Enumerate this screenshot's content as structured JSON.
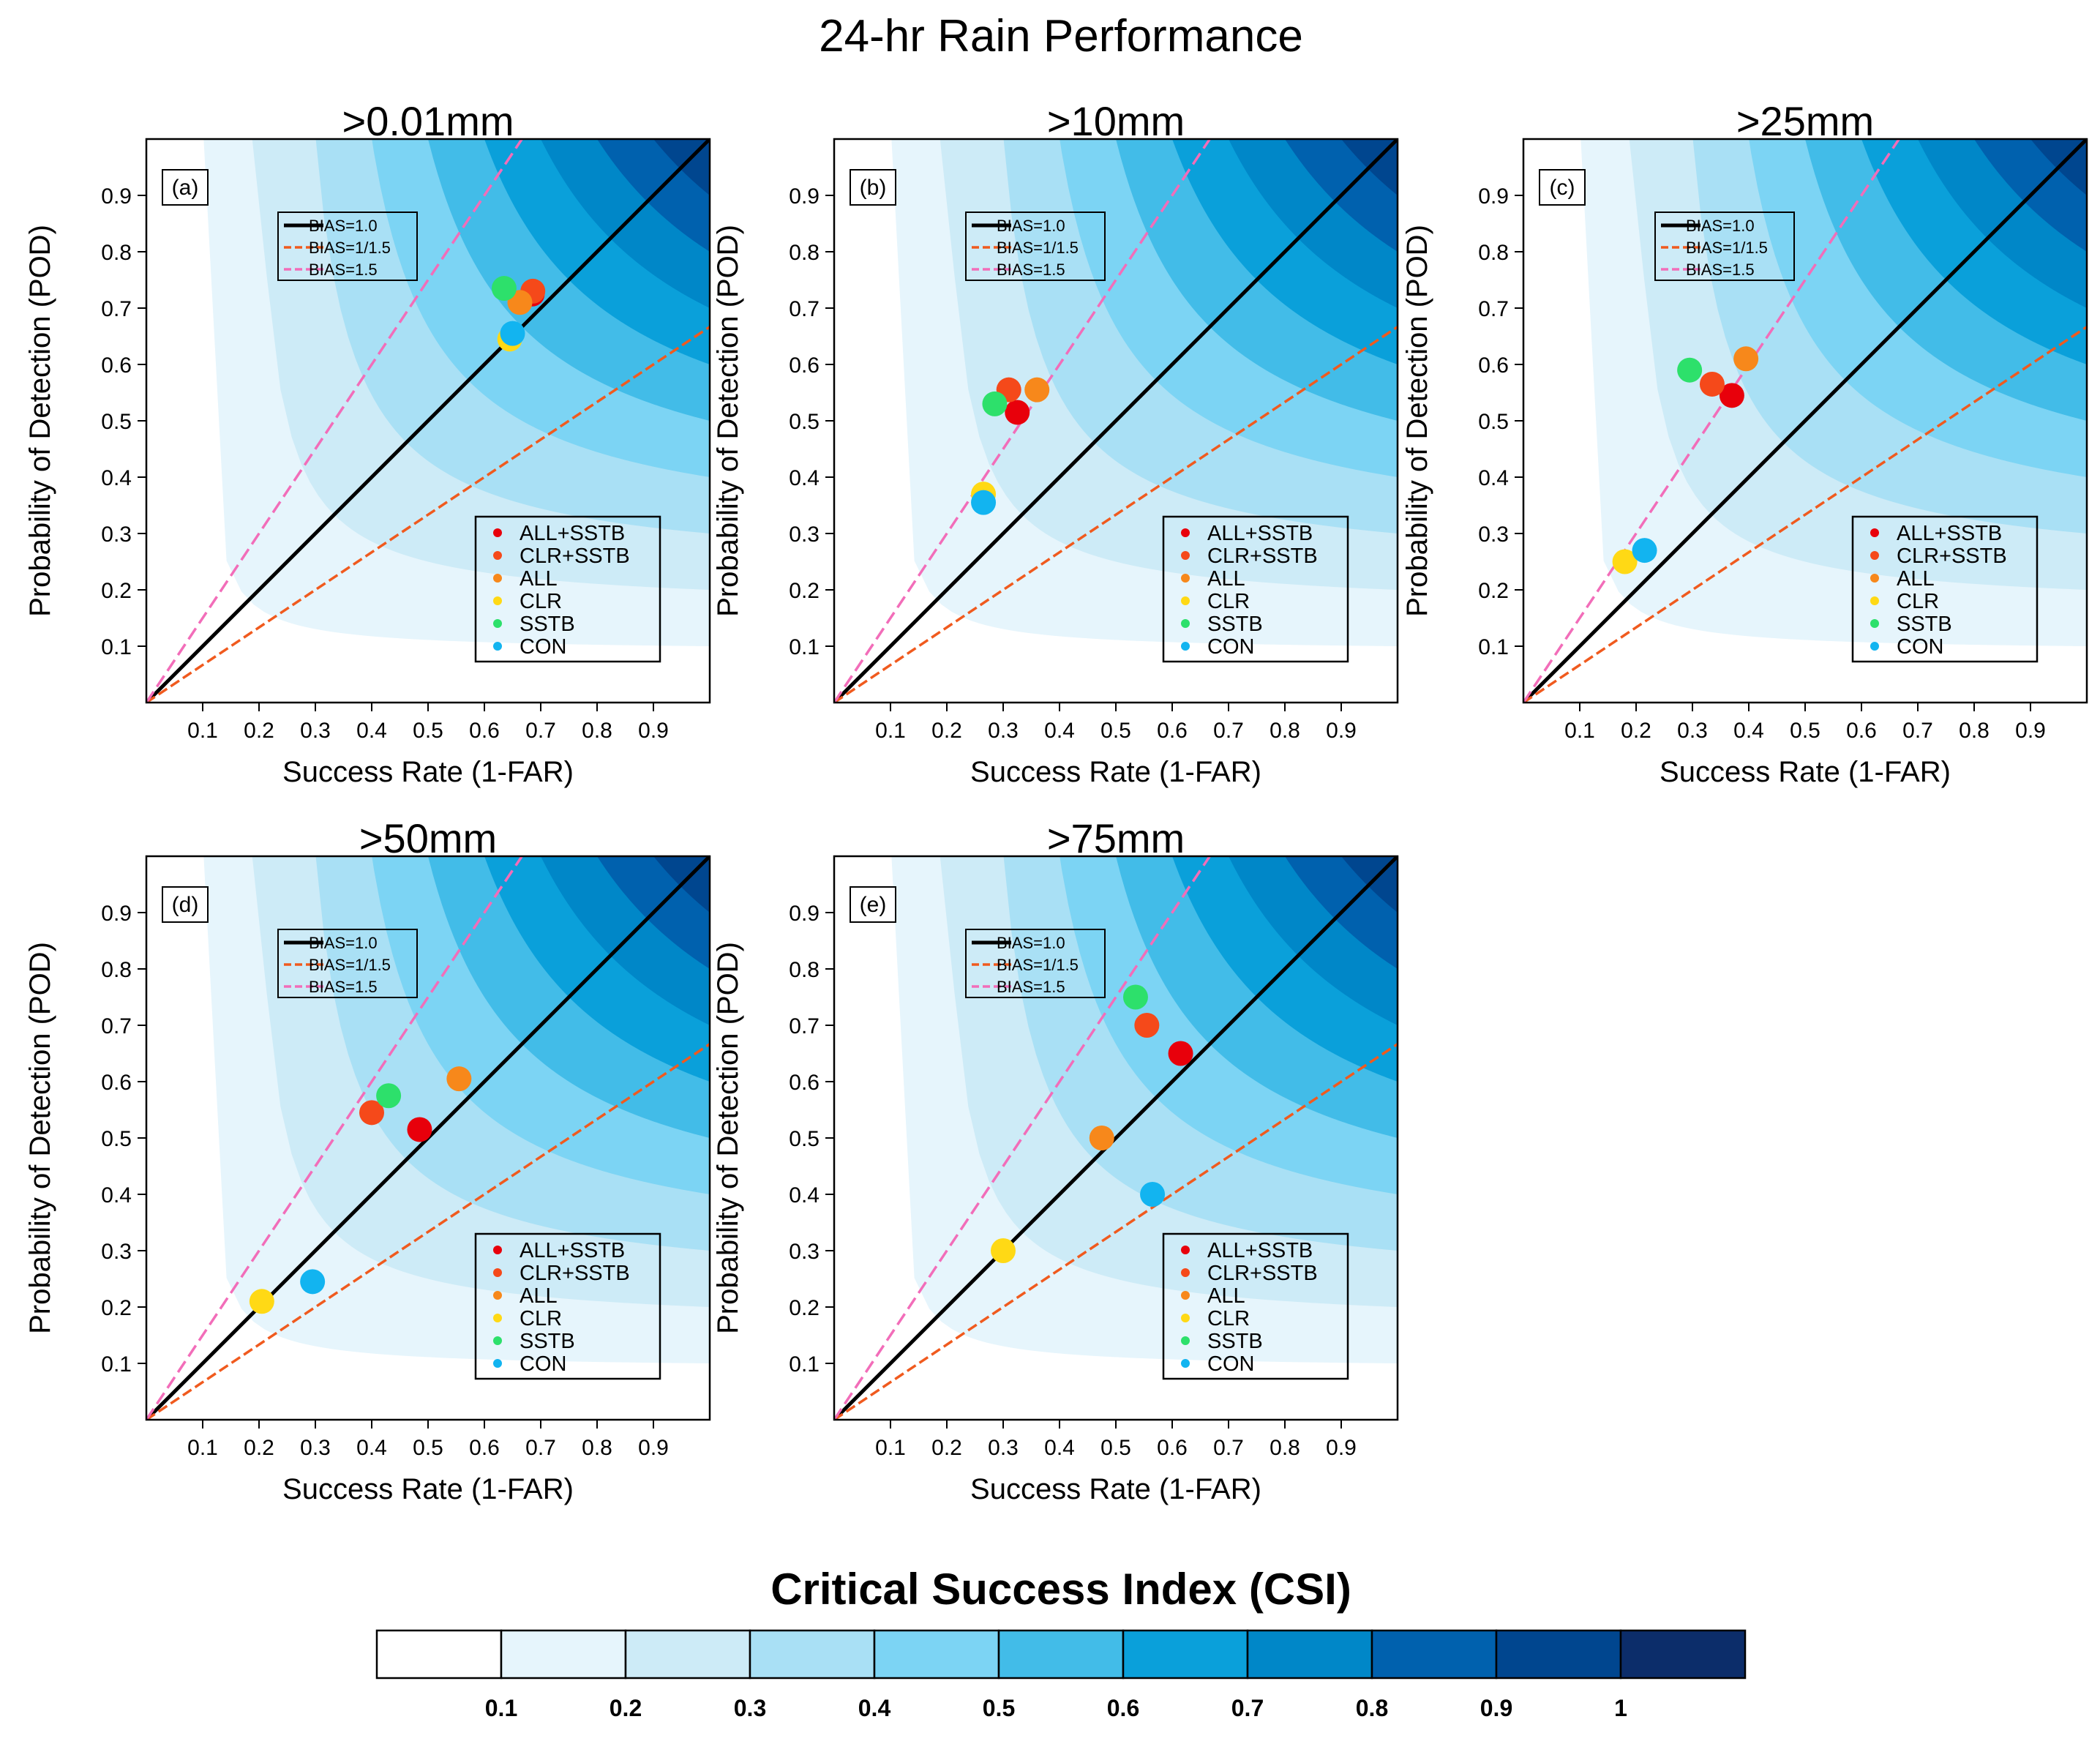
{
  "figure": {
    "title": "24-hr Rain Performance",
    "colorbar_title": "Critical Success Index (CSI)"
  },
  "colors": {
    "csi_levels": [
      "#ffffff",
      "#e6f5fc",
      "#cdebf7",
      "#a9e0f5",
      "#7cd4f4",
      "#42bce8",
      "#0aa0da",
      "#0087c8",
      "#0061ae",
      "#00468f",
      "#0c2d6a"
    ],
    "bias_1": "#000000",
    "bias_1_1_5": "#f05a1e",
    "bias_1_5": "#f26db9"
  },
  "chart_data": [
    {
      "type": "scatter",
      "panel_label": "(a)",
      "title": ">0.01mm",
      "xlabel": "Success Rate (1-FAR)",
      "ylabel": "Probability of Detection (POD)",
      "xlim": [
        0,
        1
      ],
      "ylim": [
        0,
        1
      ],
      "xticks": [
        "0.1",
        "0.2",
        "0.3",
        "0.4",
        "0.5",
        "0.6",
        "0.7",
        "0.8",
        "0.9"
      ],
      "yticks": [
        "0.1",
        "0.2",
        "0.3",
        "0.4",
        "0.5",
        "0.6",
        "0.7",
        "0.8",
        "0.9"
      ],
      "reference_lines": [
        {
          "label": "BIAS=1.0",
          "bias": 1.0
        },
        {
          "label": "BIAS=1/1.5",
          "bias": 0.6667
        },
        {
          "label": "BIAS=1.5",
          "bias": 1.5
        }
      ],
      "series": [
        {
          "name": "ALL+SSTB",
          "color": "#e8000b",
          "x": 0.685,
          "y": 0.725
        },
        {
          "name": "CLR+SSTB",
          "color": "#f5491a",
          "x": 0.686,
          "y": 0.73
        },
        {
          "name": "ALL",
          "color": "#f7881b",
          "x": 0.663,
          "y": 0.71
        },
        {
          "name": "CLR",
          "color": "#ffd915",
          "x": 0.645,
          "y": 0.645
        },
        {
          "name": "SSTB",
          "color": "#2de06b",
          "x": 0.635,
          "y": 0.735
        },
        {
          "name": "CON",
          "color": "#12b4f0",
          "x": 0.65,
          "y": 0.655
        }
      ]
    },
    {
      "type": "scatter",
      "panel_label": "(b)",
      "title": ">10mm",
      "xlabel": "Success Rate (1-FAR)",
      "ylabel": "Probability of Detection (POD)",
      "xlim": [
        0,
        1
      ],
      "ylim": [
        0,
        1
      ],
      "xticks": [
        "0.1",
        "0.2",
        "0.3",
        "0.4",
        "0.5",
        "0.6",
        "0.7",
        "0.8",
        "0.9"
      ],
      "yticks": [
        "0.1",
        "0.2",
        "0.3",
        "0.4",
        "0.5",
        "0.6",
        "0.7",
        "0.8",
        "0.9"
      ],
      "reference_lines": [
        {
          "label": "BIAS=1.0",
          "bias": 1.0
        },
        {
          "label": "BIAS=1/1.5",
          "bias": 0.6667
        },
        {
          "label": "BIAS=1.5",
          "bias": 1.5
        }
      ],
      "series": [
        {
          "name": "ALL+SSTB",
          "color": "#e8000b",
          "x": 0.325,
          "y": 0.515
        },
        {
          "name": "CLR+SSTB",
          "color": "#f5491a",
          "x": 0.31,
          "y": 0.555
        },
        {
          "name": "ALL",
          "color": "#f7881b",
          "x": 0.36,
          "y": 0.555
        },
        {
          "name": "CLR",
          "color": "#ffd915",
          "x": 0.265,
          "y": 0.37
        },
        {
          "name": "SSTB",
          "color": "#2de06b",
          "x": 0.285,
          "y": 0.53
        },
        {
          "name": "CON",
          "color": "#12b4f0",
          "x": 0.265,
          "y": 0.355
        }
      ]
    },
    {
      "type": "scatter",
      "panel_label": "(c)",
      "title": ">25mm",
      "xlabel": "Success Rate (1-FAR)",
      "ylabel": "Probability of Detection (POD)",
      "xlim": [
        0,
        1
      ],
      "ylim": [
        0,
        1
      ],
      "xticks": [
        "0.1",
        "0.2",
        "0.3",
        "0.4",
        "0.5",
        "0.6",
        "0.7",
        "0.8",
        "0.9"
      ],
      "yticks": [
        "0.1",
        "0.2",
        "0.3",
        "0.4",
        "0.5",
        "0.6",
        "0.7",
        "0.8",
        "0.9"
      ],
      "reference_lines": [
        {
          "label": "BIAS=1.0",
          "bias": 1.0
        },
        {
          "label": "BIAS=1/1.5",
          "bias": 0.6667
        },
        {
          "label": "BIAS=1.5",
          "bias": 1.5
        }
      ],
      "series": [
        {
          "name": "ALL+SSTB",
          "color": "#e8000b",
          "x": 0.37,
          "y": 0.545
        },
        {
          "name": "CLR+SSTB",
          "color": "#f5491a",
          "x": 0.335,
          "y": 0.565
        },
        {
          "name": "ALL",
          "color": "#f7881b",
          "x": 0.395,
          "y": 0.61
        },
        {
          "name": "CLR",
          "color": "#ffd915",
          "x": 0.18,
          "y": 0.25
        },
        {
          "name": "SSTB",
          "color": "#2de06b",
          "x": 0.295,
          "y": 0.59
        },
        {
          "name": "CON",
          "color": "#12b4f0",
          "x": 0.215,
          "y": 0.27
        }
      ]
    },
    {
      "type": "scatter",
      "panel_label": "(d)",
      "title": ">50mm",
      "xlabel": "Success Rate (1-FAR)",
      "ylabel": "Probability of Detection (POD)",
      "xlim": [
        0,
        1
      ],
      "ylim": [
        0,
        1
      ],
      "xticks": [
        "0.1",
        "0.2",
        "0.3",
        "0.4",
        "0.5",
        "0.6",
        "0.7",
        "0.8",
        "0.9"
      ],
      "yticks": [
        "0.1",
        "0.2",
        "0.3",
        "0.4",
        "0.5",
        "0.6",
        "0.7",
        "0.8",
        "0.9"
      ],
      "reference_lines": [
        {
          "label": "BIAS=1.0",
          "bias": 1.0
        },
        {
          "label": "BIAS=1/1.5",
          "bias": 0.6667
        },
        {
          "label": "BIAS=1.5",
          "bias": 1.5
        }
      ],
      "series": [
        {
          "name": "ALL+SSTB",
          "color": "#e8000b",
          "x": 0.485,
          "y": 0.515
        },
        {
          "name": "CLR+SSTB",
          "color": "#f5491a",
          "x": 0.4,
          "y": 0.545
        },
        {
          "name": "ALL",
          "color": "#f7881b",
          "x": 0.555,
          "y": 0.605
        },
        {
          "name": "CLR",
          "color": "#ffd915",
          "x": 0.205,
          "y": 0.21
        },
        {
          "name": "SSTB",
          "color": "#2de06b",
          "x": 0.43,
          "y": 0.575
        },
        {
          "name": "CON",
          "color": "#12b4f0",
          "x": 0.295,
          "y": 0.245
        }
      ]
    },
    {
      "type": "scatter",
      "panel_label": "(e)",
      "title": ">75mm",
      "xlabel": "Success Rate (1-FAR)",
      "ylabel": "Probability of Detection (POD)",
      "xlim": [
        0,
        1
      ],
      "ylim": [
        0,
        1
      ],
      "xticks": [
        "0.1",
        "0.2",
        "0.3",
        "0.4",
        "0.5",
        "0.6",
        "0.7",
        "0.8",
        "0.9"
      ],
      "yticks": [
        "0.1",
        "0.2",
        "0.3",
        "0.4",
        "0.5",
        "0.6",
        "0.7",
        "0.8",
        "0.9"
      ],
      "reference_lines": [
        {
          "label": "BIAS=1.0",
          "bias": 1.0
        },
        {
          "label": "BIAS=1/1.5",
          "bias": 0.6667
        },
        {
          "label": "BIAS=1.5",
          "bias": 1.5
        }
      ],
      "series": [
        {
          "name": "ALL+SSTB",
          "color": "#e8000b",
          "x": 0.615,
          "y": 0.65
        },
        {
          "name": "CLR+SSTB",
          "color": "#f5491a",
          "x": 0.555,
          "y": 0.7
        },
        {
          "name": "ALL",
          "color": "#f7881b",
          "x": 0.475,
          "y": 0.5
        },
        {
          "name": "CLR",
          "color": "#ffd915",
          "x": 0.3,
          "y": 0.3
        },
        {
          "name": "SSTB",
          "color": "#2de06b",
          "x": 0.535,
          "y": 0.75
        },
        {
          "name": "CON",
          "color": "#12b4f0",
          "x": 0.565,
          "y": 0.4
        }
      ]
    }
  ],
  "colorbar": {
    "title": "Critical Success Index (CSI)",
    "tick_labels": [
      "0.1",
      "0.2",
      "0.3",
      "0.4",
      "0.5",
      "0.6",
      "0.7",
      "0.8",
      "0.9",
      "1"
    ]
  }
}
